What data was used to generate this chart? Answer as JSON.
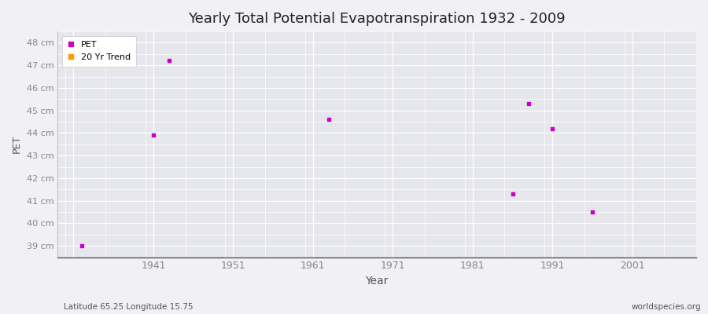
{
  "title": "Yearly Total Potential Evapotranspiration 1932 - 2009",
  "xlabel": "Year",
  "ylabel": "PET",
  "subtitle_left": "Latitude 65.25 Longitude 15.75",
  "subtitle_right": "worldspecies.org",
  "xlim": [
    1929,
    2009
  ],
  "ylim": [
    38.5,
    48.5
  ],
  "yticks": [
    39,
    40,
    41,
    42,
    43,
    44,
    45,
    46,
    47,
    48
  ],
  "ytick_labels": [
    "39 cm",
    "40 cm",
    "41 cm",
    "42 cm",
    "43 cm",
    "44 cm",
    "45 cm",
    "46 cm",
    "47 cm",
    "48 cm"
  ],
  "xticks": [
    1931,
    1941,
    1951,
    1961,
    1971,
    1981,
    1991,
    2001
  ],
  "xtick_labels": [
    "",
    "1941",
    "1951",
    "1961",
    "1971",
    "1981",
    "1991",
    "2001"
  ],
  "pet_years": [
    1932,
    1943,
    1941,
    1963,
    1986,
    1988,
    1991,
    1996
  ],
  "pet_values": [
    39.0,
    47.2,
    43.9,
    44.6,
    41.3,
    45.3,
    44.2,
    40.5
  ],
  "pet_color": "#cc00cc",
  "trend_color": "#ff9900",
  "bg_color": "#f0f0f5",
  "plot_bg_color": "#e6e6ed",
  "grid_color": "#ffffff",
  "grid_minor_color": "#f0f0f5",
  "marker_size": 3,
  "legend_pet_label": "PET",
  "legend_trend_label": "20 Yr Trend",
  "tick_label_color": "#888888",
  "axis_label_color": "#555555",
  "title_color": "#222222",
  "spine_color": "#aaaaaa"
}
